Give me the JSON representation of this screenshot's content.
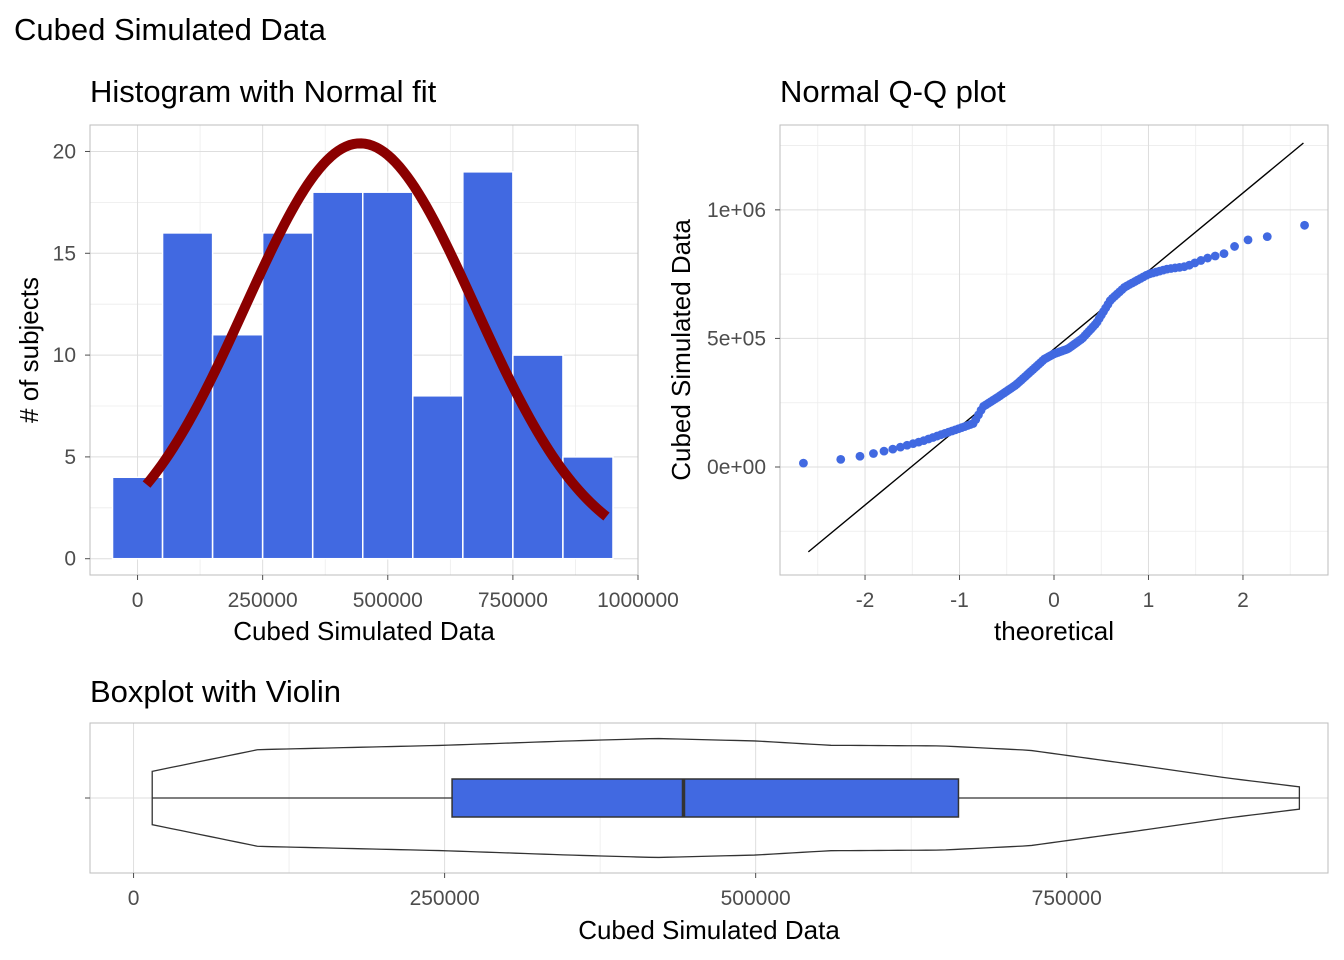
{
  "figure": {
    "title": "Cubed Simulated Data",
    "colors": {
      "fill": "#4169e1",
      "fit_line": "#8b0000",
      "reference": "#000000",
      "grid": "#dedede"
    }
  },
  "chart_data": [
    {
      "type": "bar",
      "subtype": "histogram",
      "title": "Histogram with Normal fit",
      "xlabel": "Cubed Simulated Data",
      "ylabel": "# of subjects",
      "bin_width": 100000,
      "bin_centers": [
        0,
        100000,
        200000,
        300000,
        400000,
        500000,
        600000,
        700000,
        800000,
        900000
      ],
      "values": [
        4,
        16,
        11,
        16,
        18,
        18,
        8,
        19,
        10,
        5
      ],
      "xlim": [
        -95000,
        1000000
      ],
      "ylim": [
        -0.8,
        21.3
      ],
      "xticks": [
        0,
        250000,
        500000,
        750000,
        1000000
      ],
      "xtick_labels": [
        "0",
        "250000",
        "500000",
        "750000",
        "1000000"
      ],
      "yticks": [
        0,
        5,
        10,
        15,
        20
      ],
      "ytick_labels": [
        "0",
        "5",
        "10",
        "15",
        "20"
      ],
      "normal_fit": {
        "mean": 445000,
        "sd": 230000,
        "peak": 20.4,
        "x_range": [
          18000,
          937000
        ]
      },
      "grid": true
    },
    {
      "type": "scatter",
      "subtype": "qq",
      "title": "Normal Q-Q plot",
      "xlabel": "theoretical",
      "ylabel": "Cubed Simulated Data",
      "xlim": [
        -2.9,
        2.9
      ],
      "ylim": [
        -420000,
        1330000
      ],
      "xticks": [
        -2,
        -1,
        0,
        1,
        2
      ],
      "xtick_labels": [
        "-2",
        "-1",
        "0",
        "1",
        "2"
      ],
      "yticks": [
        0,
        500000,
        1000000
      ],
      "ytick_labels": [
        "0e+00",
        "5e+05",
        "1e+06"
      ],
      "reference_line": {
        "from": [
          -2.6,
          -330000
        ],
        "to": [
          2.64,
          1260000
        ]
      },
      "quantile_knots": {
        "theoretical": [
          -2.64,
          -2.25,
          -2.0,
          -1.7,
          -1.4,
          -1.2,
          -1.0,
          -0.85,
          -0.75,
          -0.6,
          -0.4,
          -0.25,
          -0.1,
          0.0,
          0.15,
          0.3,
          0.45,
          0.6,
          0.75,
          0.9,
          1.0,
          1.2,
          1.4,
          1.6,
          1.8,
          2.0,
          2.25,
          2.64
        ],
        "sample": [
          15000,
          30000,
          45000,
          70000,
          100000,
          125000,
          150000,
          170000,
          235000,
          270000,
          320000,
          370000,
          420000,
          440000,
          460000,
          500000,
          560000,
          650000,
          700000,
          730000,
          750000,
          770000,
          780000,
          810000,
          830000,
          880000,
          895000,
          940000
        ]
      },
      "n_points": 125,
      "grid": true
    },
    {
      "type": "box",
      "subtype": "violin",
      "title": "Boxplot with Violin",
      "xlabel": "Cubed Simulated Data",
      "xlim": [
        -35000,
        960000
      ],
      "xticks": [
        0,
        250000,
        500000,
        750000
      ],
      "xtick_labels": [
        "0",
        "250000",
        "500000",
        "750000"
      ],
      "box": {
        "min": 15000,
        "q1": 256000,
        "median": 442000,
        "q3": 663000,
        "max": 937000
      },
      "violin_profile": {
        "x": [
          15000,
          100000,
          250000,
          350000,
          420000,
          500000,
          560000,
          650000,
          720000,
          800000,
          880000,
          937000
        ],
        "half_width": [
          0.43,
          0.78,
          0.85,
          0.92,
          0.96,
          0.92,
          0.85,
          0.84,
          0.77,
          0.55,
          0.32,
          0.18
        ]
      },
      "grid": true
    }
  ]
}
